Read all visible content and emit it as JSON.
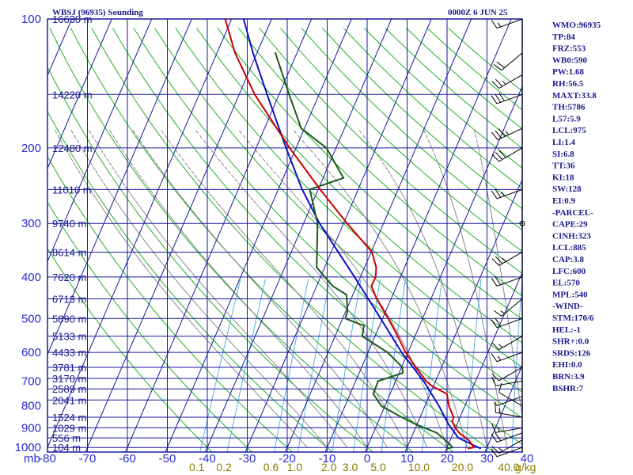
{
  "chart_data": {
    "type": "skew-t",
    "title": "WBSJ (96935) Sounding",
    "valid_time": "0000Z  6 JUN 25",
    "pressure_unit_label": "mb",
    "mixing_ratio_unit_label": "g/kg",
    "pressure_levels": [
      1000,
      900,
      800,
      700,
      600,
      500,
      400,
      300,
      200,
      100
    ],
    "pressure_range": [
      1025,
      100
    ],
    "temperature_ticks": [
      -80,
      -70,
      -60,
      -50,
      -40,
      -30,
      -20,
      -10,
      0,
      10,
      20,
      30,
      40
    ],
    "temperature_range_at_1000": [
      -80,
      40
    ],
    "mixing_ratio_labels": [
      "0.1",
      "0.2",
      "0.6",
      "1.0",
      "2.0",
      "3.0",
      "5.0",
      "10.0",
      "20.0",
      "40.0"
    ],
    "mixing_ratio_values": [
      0.1,
      0.2,
      0.6,
      1.0,
      2.0,
      3.0,
      5.0,
      10.0,
      20.0,
      40.0
    ],
    "height_labels": [
      {
        "p": 1000,
        "text": "104 m"
      },
      {
        "p": 950,
        "text": "556 m"
      },
      {
        "p": 900,
        "text": "1029 m"
      },
      {
        "p": 850,
        "text": "1524 m"
      },
      {
        "p": 775,
        "text": "2041 m"
      },
      {
        "p": 730,
        "text": "2589 m"
      },
      {
        "p": 690,
        "text": "3170 m"
      },
      {
        "p": 650,
        "text": "3781 m"
      },
      {
        "p": 600,
        "text": "4433 m"
      },
      {
        "p": 550,
        "text": "5133 m"
      },
      {
        "p": 500,
        "text": "5890 m"
      },
      {
        "p": 450,
        "text": "6713 m"
      },
      {
        "p": 400,
        "text": "7620 m"
      },
      {
        "p": 350,
        "text": "8614 m"
      },
      {
        "p": 300,
        "text": "9740 m"
      },
      {
        "p": 250,
        "text": "11010 m"
      },
      {
        "p": 200,
        "text": "12480 m"
      },
      {
        "p": 150,
        "text": "14220 m"
      },
      {
        "p": 100,
        "text": "16630 m"
      }
    ],
    "temperature_profile": [
      {
        "p": 1005,
        "t": 25.4
      },
      {
        "p": 1000,
        "t": 26.6
      },
      {
        "p": 985,
        "t": 26.0
      },
      {
        "p": 960,
        "t": 24.5
      },
      {
        "p": 925,
        "t": 21.5
      },
      {
        "p": 900,
        "t": 20.0
      },
      {
        "p": 870,
        "t": 18.5
      },
      {
        "p": 850,
        "t": 18.4
      },
      {
        "p": 800,
        "t": 16.0
      },
      {
        "p": 750,
        "t": 14.2
      },
      {
        "p": 720,
        "t": 9.8
      },
      {
        "p": 700,
        "t": 7.6
      },
      {
        "p": 650,
        "t": 3.6
      },
      {
        "p": 600,
        "t": -0.6
      },
      {
        "p": 550,
        "t": -4.3
      },
      {
        "p": 500,
        "t": -8.6
      },
      {
        "p": 450,
        "t": -13.6
      },
      {
        "p": 420,
        "t": -16.3
      },
      {
        "p": 400,
        "t": -16.2
      },
      {
        "p": 380,
        "t": -17.1
      },
      {
        "p": 350,
        "t": -19.8
      },
      {
        "p": 300,
        "t": -29.1
      },
      {
        "p": 250,
        "t": -39.5
      },
      {
        "p": 200,
        "t": -51.6
      },
      {
        "p": 150,
        "t": -66.1
      },
      {
        "p": 120,
        "t": -75.5
      },
      {
        "p": 100,
        "t": -81.6
      }
    ],
    "dewpoint_profile": [
      {
        "p": 1005,
        "t": 20.1
      },
      {
        "p": 1000,
        "t": 21.3
      },
      {
        "p": 985,
        "t": 20.5
      },
      {
        "p": 925,
        "t": 15.9
      },
      {
        "p": 880,
        "t": 9.3
      },
      {
        "p": 850,
        "t": 5.4
      },
      {
        "p": 800,
        "t": -0.9
      },
      {
        "p": 750,
        "t": -4.2
      },
      {
        "p": 700,
        "t": -4.4
      },
      {
        "p": 670,
        "t": 0.9
      },
      {
        "p": 650,
        "t": 0.2
      },
      {
        "p": 600,
        "t": -5.1
      },
      {
        "p": 550,
        "t": -13.2
      },
      {
        "p": 520,
        "t": -13.9
      },
      {
        "p": 500,
        "t": -19.3
      },
      {
        "p": 480,
        "t": -19.6
      },
      {
        "p": 440,
        "t": -21.6
      },
      {
        "p": 420,
        "t": -26.0
      },
      {
        "p": 380,
        "t": -32.0
      },
      {
        "p": 300,
        "t": -36.5
      },
      {
        "p": 250,
        "t": -42.1
      },
      {
        "p": 235,
        "t": -34.9
      },
      {
        "p": 200,
        "t": -42.4
      },
      {
        "p": 180,
        "t": -50.8
      },
      {
        "p": 150,
        "t": -57.5
      },
      {
        "p": 120,
        "t": -65.4
      }
    ],
    "parcel_profile": [
      {
        "p": 1005,
        "t": 28.4
      },
      {
        "p": 950,
        "t": 21.8
      },
      {
        "p": 885,
        "t": 18.0
      },
      {
        "p": 800,
        "t": 13.5
      },
      {
        "p": 700,
        "t": 7.0
      },
      {
        "p": 600,
        "t": -1.6
      },
      {
        "p": 500,
        "t": -10.5
      },
      {
        "p": 400,
        "t": -21.5
      },
      {
        "p": 300,
        "t": -36.0
      },
      {
        "p": 250,
        "t": -44.0
      },
      {
        "p": 200,
        "t": -52.5
      },
      {
        "p": 150,
        "t": -63.0
      },
      {
        "p": 120,
        "t": -71.0
      },
      {
        "p": 100,
        "t": -77.0
      }
    ],
    "wind_barbs": [
      {
        "p": 1000,
        "dir": 250,
        "spd": 10
      },
      {
        "p": 960,
        "dir": 240,
        "spd": 15
      },
      {
        "p": 925,
        "dir": 250,
        "spd": 20
      },
      {
        "p": 900,
        "dir": 260,
        "spd": 15
      },
      {
        "p": 850,
        "dir": 280,
        "spd": 15
      },
      {
        "p": 800,
        "dir": 300,
        "spd": 10
      },
      {
        "p": 760,
        "dir": 250,
        "spd": 5
      },
      {
        "p": 700,
        "dir": 260,
        "spd": 10
      },
      {
        "p": 650,
        "dir": 240,
        "spd": 10
      },
      {
        "p": 600,
        "dir": 250,
        "spd": 15
      },
      {
        "p": 550,
        "dir": 240,
        "spd": 15
      },
      {
        "p": 500,
        "dir": 250,
        "spd": 20
      },
      {
        "p": 450,
        "dir": 230,
        "spd": 15
      },
      {
        "p": 400,
        "dir": 250,
        "spd": 20
      },
      {
        "p": 350,
        "dir": 240,
        "spd": 25
      },
      {
        "p": 300,
        "dir": 0,
        "spd": 0
      },
      {
        "p": 250,
        "dir": 250,
        "spd": 25
      },
      {
        "p": 200,
        "dir": 240,
        "spd": 30
      },
      {
        "p": 180,
        "dir": 245,
        "spd": 35
      },
      {
        "p": 150,
        "dir": 250,
        "spd": 30
      },
      {
        "p": 135,
        "dir": 240,
        "spd": 25
      },
      {
        "p": 120,
        "dir": 230,
        "spd": 20
      },
      {
        "p": 100,
        "dir": 250,
        "spd": 15
      }
    ],
    "colors": {
      "isobar": "#1a1aa0",
      "isotherm": "#1a1aa0",
      "dry_adiabat": "#22b022",
      "moist_adiabat": "#7c7c7c",
      "mixing_ratio": "#45a9e0",
      "temperature": "#cc0000",
      "dewpoint": "#1a5a1a",
      "parcel": "#1010c8",
      "tick_label": "#2b2bd6",
      "mixing_label": "#8b7d00"
    },
    "grid": true,
    "legend": "none"
  },
  "indices": [
    "WMO:96935",
    "TP:84",
    "FRZ:553",
    "WB0:590",
    "PW:1.68",
    "RH:56.5",
    "MAXT:33.8",
    "TH:5786",
    "L57:5.9",
    "LCL:975",
    "LI:1.4",
    "SI:6.8",
    "TT:36",
    "KI:18",
    "SW:128",
    "EI:0.9",
    "-PARCEL-",
    "CAPE:29",
    "CINH:323",
    "LCL:885",
    "CAP:3.8",
    "LFC:600",
    "EL:570",
    "MPL:540",
    "-WIND-",
    "STM:170/6",
    "HEL:-1",
    "SHR+:0.0",
    "SRDS:126",
    "EHI:0.0",
    "BRN:3.9",
    "BSHR:7"
  ]
}
